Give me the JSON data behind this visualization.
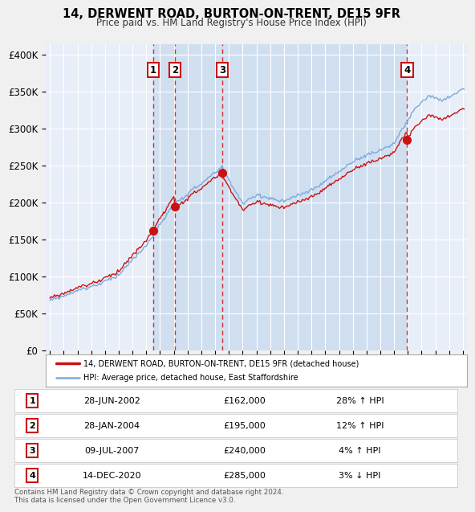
{
  "title": "14, DERWENT ROAD, BURTON-ON-TRENT, DE15 9FR",
  "subtitle": "Price paid vs. HM Land Registry's House Price Index (HPI)",
  "ylabel_ticks": [
    "£0",
    "£50K",
    "£100K",
    "£150K",
    "£200K",
    "£250K",
    "£300K",
    "£350K",
    "£400K"
  ],
  "ytick_vals": [
    0,
    50000,
    100000,
    150000,
    200000,
    250000,
    300000,
    350000,
    400000
  ],
  "ylim": [
    0,
    415000
  ],
  "xlim_start": 1994.7,
  "xlim_end": 2025.3,
  "background_color": "#f0f0f0",
  "plot_bg": "#e8eef8",
  "grid_color": "#ffffff",
  "sale_color": "#cc1111",
  "hpi_color": "#7aaadd",
  "shade_color": "#d0dff0",
  "sale_label": "14, DERWENT ROAD, BURTON-ON-TRENT, DE15 9FR (detached house)",
  "hpi_label": "HPI: Average price, detached house, East Staffordshire",
  "footnote": "Contains HM Land Registry data © Crown copyright and database right 2024.\nThis data is licensed under the Open Government Licence v3.0.",
  "transactions": [
    {
      "num": 1,
      "date_label": "28-JUN-2002",
      "price": 162000,
      "pct": "28%",
      "dir": "↑",
      "x": 2002.49
    },
    {
      "num": 2,
      "date_label": "28-JAN-2004",
      "price": 195000,
      "pct": "12%",
      "dir": "↑",
      "x": 2004.08
    },
    {
      "num": 3,
      "date_label": "09-JUL-2007",
      "price": 240000,
      "pct": "4%",
      "dir": "↑",
      "x": 2007.52
    },
    {
      "num": 4,
      "date_label": "14-DEC-2020",
      "price": 285000,
      "pct": "3%",
      "dir": "↓",
      "x": 2020.95
    }
  ]
}
